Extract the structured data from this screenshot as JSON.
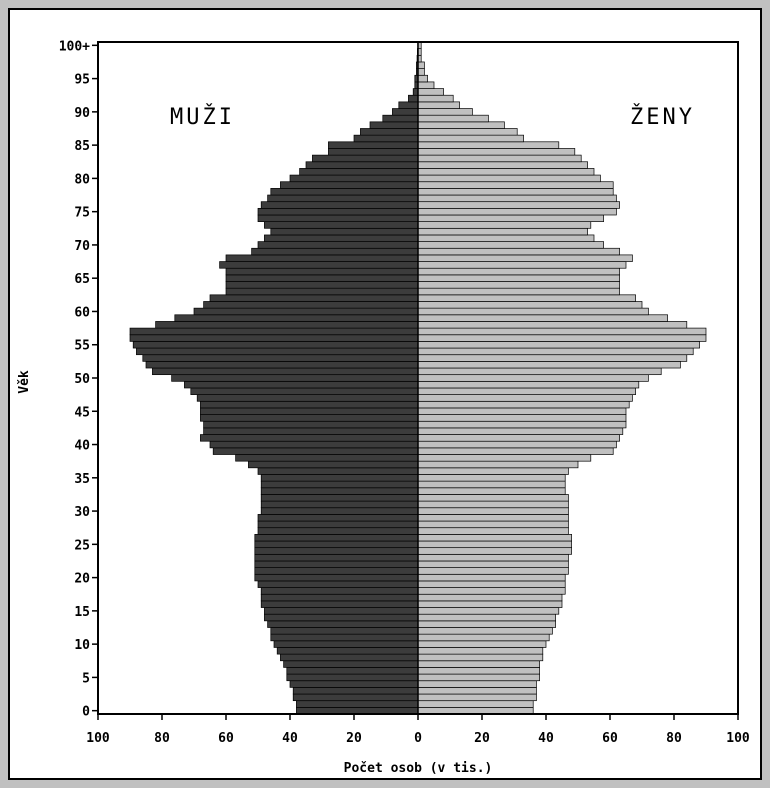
{
  "chart_data": {
    "type": "bar",
    "title": "",
    "xlabel": "Počet osob (v tis.)",
    "ylabel": "Věk",
    "left_group_label": "MUŽI",
    "right_group_label": "ŽENY",
    "xlim": [
      -100,
      100
    ],
    "ylim": [
      0,
      100
    ],
    "x_tick_labels": [
      "100",
      "80",
      "60",
      "40",
      "20",
      "0",
      "20",
      "40",
      "60",
      "80",
      "100"
    ],
    "y_tick_labels": [
      "0",
      "5",
      "10",
      "15",
      "20",
      "25",
      "30",
      "35",
      "40",
      "45",
      "50",
      "55",
      "60",
      "65",
      "70",
      "75",
      "80",
      "85",
      "90",
      "95",
      "100+"
    ],
    "categories": [
      "0",
      "1",
      "2",
      "3",
      "4",
      "5",
      "6",
      "7",
      "8",
      "9",
      "10",
      "11",
      "12",
      "13",
      "14",
      "15",
      "16",
      "17",
      "18",
      "19",
      "20",
      "21",
      "22",
      "23",
      "24",
      "25",
      "26",
      "27",
      "28",
      "29",
      "30",
      "31",
      "32",
      "33",
      "34",
      "35",
      "36",
      "37",
      "38",
      "39",
      "40",
      "41",
      "42",
      "43",
      "44",
      "45",
      "46",
      "47",
      "48",
      "49",
      "50",
      "51",
      "52",
      "53",
      "54",
      "55",
      "56",
      "57",
      "58",
      "59",
      "60",
      "61",
      "62",
      "63",
      "64",
      "65",
      "66",
      "67",
      "68",
      "69",
      "70",
      "71",
      "72",
      "73",
      "74",
      "75",
      "76",
      "77",
      "78",
      "79",
      "80",
      "81",
      "82",
      "83",
      "84",
      "85",
      "86",
      "87",
      "88",
      "89",
      "90",
      "91",
      "92",
      "93",
      "94",
      "95",
      "96",
      "97",
      "98",
      "99",
      "100+"
    ],
    "series": [
      {
        "name": "MUŽI",
        "color": "#3c3c3c",
        "values": [
          38,
          38,
          39,
          39,
          40,
          41,
          41,
          42,
          43,
          44,
          45,
          46,
          46,
          47,
          48,
          48,
          49,
          49,
          49,
          50,
          51,
          51,
          51,
          51,
          51,
          51,
          51,
          50,
          50,
          50,
          49,
          49,
          49,
          49,
          49,
          49,
          50,
          53,
          57,
          64,
          65,
          68,
          67,
          67,
          68,
          68,
          68,
          69,
          71,
          73,
          77,
          83,
          85,
          86,
          88,
          89,
          90,
          90,
          82,
          76,
          70,
          67,
          65,
          60,
          60,
          60,
          60,
          62,
          60,
          52,
          50,
          48,
          46,
          48,
          50,
          50,
          49,
          47,
          46,
          43,
          40,
          37,
          35,
          33,
          28,
          28,
          20,
          18,
          15,
          11,
          8,
          6,
          3,
          1.5,
          1,
          1,
          0.5,
          0.5,
          0.3,
          0.2,
          0.1
        ]
      },
      {
        "name": "ŽENY",
        "color": "#c0c0c0",
        "values": [
          36,
          36,
          37,
          37,
          37,
          38,
          38,
          38,
          39,
          39,
          40,
          41,
          42,
          43,
          43,
          44,
          45,
          45,
          46,
          46,
          46,
          47,
          47,
          47,
          48,
          48,
          48,
          47,
          47,
          47,
          47,
          47,
          47,
          46,
          46,
          46,
          47,
          50,
          54,
          61,
          62,
          63,
          64,
          65,
          65,
          65,
          66,
          67,
          68,
          69,
          72,
          76,
          82,
          84,
          86,
          88,
          90,
          90,
          84,
          78,
          72,
          70,
          68,
          63,
          63,
          63,
          63,
          65,
          67,
          63,
          58,
          55,
          53,
          54,
          58,
          62,
          63,
          62,
          61,
          61,
          57,
          55,
          53,
          51,
          49,
          44,
          33,
          31,
          27,
          22,
          17,
          13,
          11,
          8,
          5,
          3,
          2,
          2,
          1,
          1,
          1
        ]
      }
    ]
  }
}
